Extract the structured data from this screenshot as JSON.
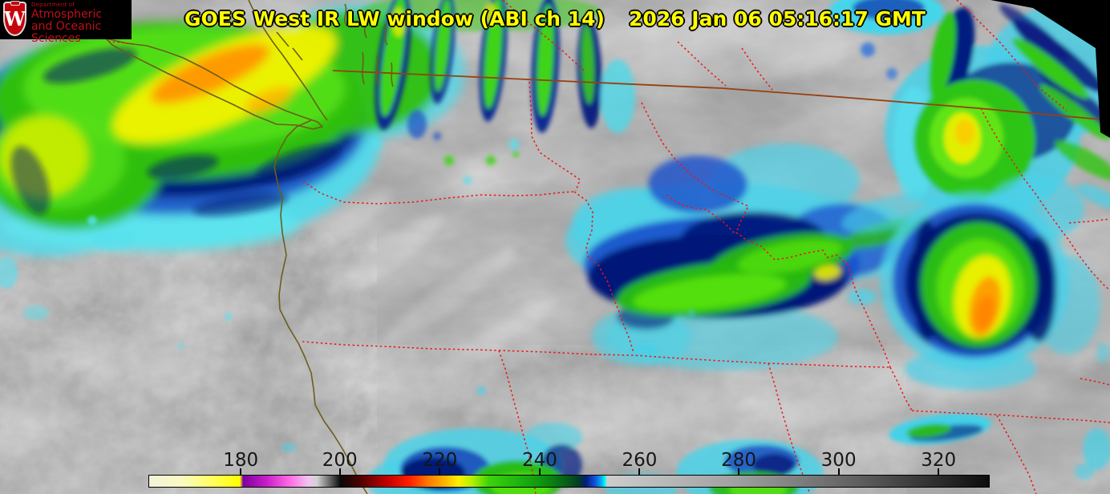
{
  "header": {
    "title": "GOES West IR LW window (ABI ch 14)",
    "timestamp": "2026 Jan 06 05:16:17 GMT",
    "title_color": "#ffff00"
  },
  "logo": {
    "dept": "Department of",
    "line2": "Atmospheric",
    "line3": "and Oceanic Sciences",
    "crest_letter": "W",
    "crest_color": "#c5050c",
    "text_color": "#c20d18",
    "background": "#000000"
  },
  "colorbar": {
    "tick_labels": [
      "180",
      "200",
      "220",
      "240",
      "260",
      "280",
      "300",
      "320"
    ],
    "ticks": [
      {
        "label": "180",
        "p": 0.11
      },
      {
        "label": "200",
        "p": 0.228
      },
      {
        "label": "220",
        "p": 0.347
      },
      {
        "label": "240",
        "p": 0.466
      },
      {
        "label": "260",
        "p": 0.585
      },
      {
        "label": "280",
        "p": 0.703
      },
      {
        "label": "300",
        "p": 0.822
      },
      {
        "label": "320",
        "p": 0.941
      }
    ],
    "label_color": "#161616",
    "stops": [
      {
        "p": 0.0,
        "c": "#f2f2da"
      },
      {
        "p": 0.04,
        "c": "#fafac0"
      },
      {
        "p": 0.075,
        "c": "#ffff60"
      },
      {
        "p": 0.108,
        "c": "#ffff00"
      },
      {
        "p": 0.112,
        "c": "#7d00a0"
      },
      {
        "p": 0.14,
        "c": "#c81ec8"
      },
      {
        "p": 0.168,
        "c": "#ff6ee6"
      },
      {
        "p": 0.19,
        "c": "#f0c4ee"
      },
      {
        "p": 0.2,
        "c": "#d2d2d2"
      },
      {
        "p": 0.228,
        "c": "#0a0a0a"
      },
      {
        "p": 0.252,
        "c": "#500000"
      },
      {
        "p": 0.285,
        "c": "#c80000"
      },
      {
        "p": 0.31,
        "c": "#ff1e00"
      },
      {
        "p": 0.332,
        "c": "#ff7800"
      },
      {
        "p": 0.352,
        "c": "#ffb400"
      },
      {
        "p": 0.368,
        "c": "#ffee00"
      },
      {
        "p": 0.385,
        "c": "#b4f000"
      },
      {
        "p": 0.405,
        "c": "#3cd20a"
      },
      {
        "p": 0.44,
        "c": "#1eb40f"
      },
      {
        "p": 0.466,
        "c": "#0f9612"
      },
      {
        "p": 0.495,
        "c": "#066414"
      },
      {
        "p": 0.512,
        "c": "#023c28"
      },
      {
        "p": 0.52,
        "c": "#021e78"
      },
      {
        "p": 0.531,
        "c": "#1450dc"
      },
      {
        "p": 0.539,
        "c": "#00b4f0"
      },
      {
        "p": 0.543,
        "c": "#00ffff"
      },
      {
        "p": 0.545,
        "c": "#cdcdcd"
      },
      {
        "p": 0.7,
        "c": "#a0a0a0"
      },
      {
        "p": 0.85,
        "c": "#5c5c5c"
      },
      {
        "p": 1.0,
        "c": "#0d0d0d"
      }
    ]
  },
  "map_colors": {
    "international_border": "#96400f",
    "state_border": "#ee1515",
    "coastline": "#6b5e1c",
    "background_gray": "#a2a2a2"
  }
}
